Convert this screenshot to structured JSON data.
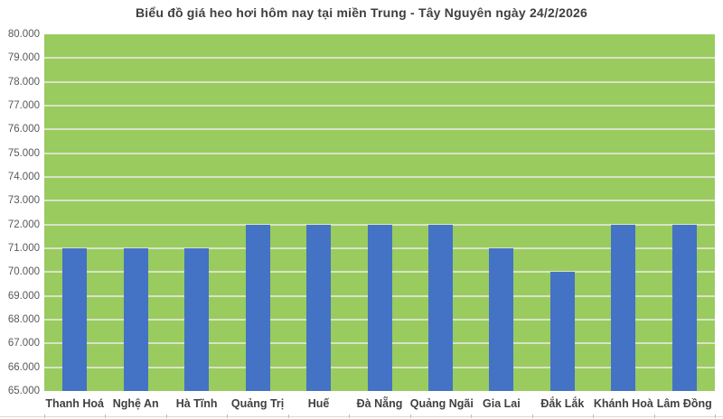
{
  "chart_data": {
    "type": "bar",
    "title": "Biểu đồ giá heo hơi hôm nay tại miền Trung - Tây Nguyên ngày 24/2/2026",
    "categories": [
      "Thanh Hoá",
      "Nghệ An",
      "Hà Tĩnh",
      "Quảng Trị",
      "Huế",
      "Đà Nẵng",
      "Quảng Ngãi",
      "Gia Lai",
      "Đắk Lắk",
      "Khánh Hoà",
      "Lâm Đồng"
    ],
    "values": [
      71000,
      71000,
      71000,
      72000,
      72000,
      72000,
      72000,
      71000,
      70000,
      72000,
      72000
    ],
    "xlabel": "",
    "ylabel": "",
    "ylim": [
      65000,
      80000
    ],
    "ytick_step": 1000,
    "ytick_labels": [
      "80.000",
      "79.000",
      "78.000",
      "77.000",
      "76.000",
      "75.000",
      "74.000",
      "73.000",
      "72.000",
      "71.000",
      "70.000",
      "69.000",
      "68.000",
      "67.000",
      "66.000",
      "65.000"
    ],
    "grid": true,
    "legend": false,
    "colors": {
      "bar": "#4472C4",
      "plot_background": "#9ACB5E",
      "gridline": "#D8E3C6",
      "title_text": "#404040",
      "ytick_text": "#595959",
      "xtick_text": "#404040",
      "bottom_line": "#D9D9D9"
    }
  }
}
